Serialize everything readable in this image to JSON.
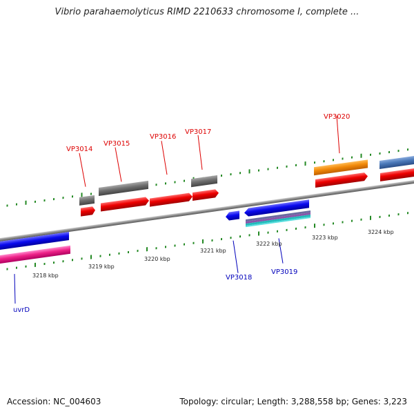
{
  "title": "Vibrio parahaemolyticus RIMD 2210633 chromosome I, complete ...",
  "footer": {
    "accession": "Accession: NC_004603",
    "topology": "Topology: circular;",
    "length": "Length: 3,288,558 bp;",
    "genes": "Genes: 3,223"
  },
  "colors": {
    "forward_label": "#dd0000",
    "reverse_label": "#0000bb",
    "tick": "#228822",
    "backbone": "#8a8a8a"
  },
  "scale_labels": [
    "3218 kbp",
    "3219 kbp",
    "3220 kbp",
    "3221 kbp",
    "3222 kbp",
    "3223 kbp",
    "3224 kbp"
  ],
  "gene_labels": {
    "VP3014": "VP3014",
    "VP3015": "VP3015",
    "VP3016": "VP3016",
    "VP3017": "VP3017",
    "VP3020": "VP3020",
    "VP3018": "VP3018",
    "VP3019": "VP3019",
    "uvrD": "uvrD"
  }
}
